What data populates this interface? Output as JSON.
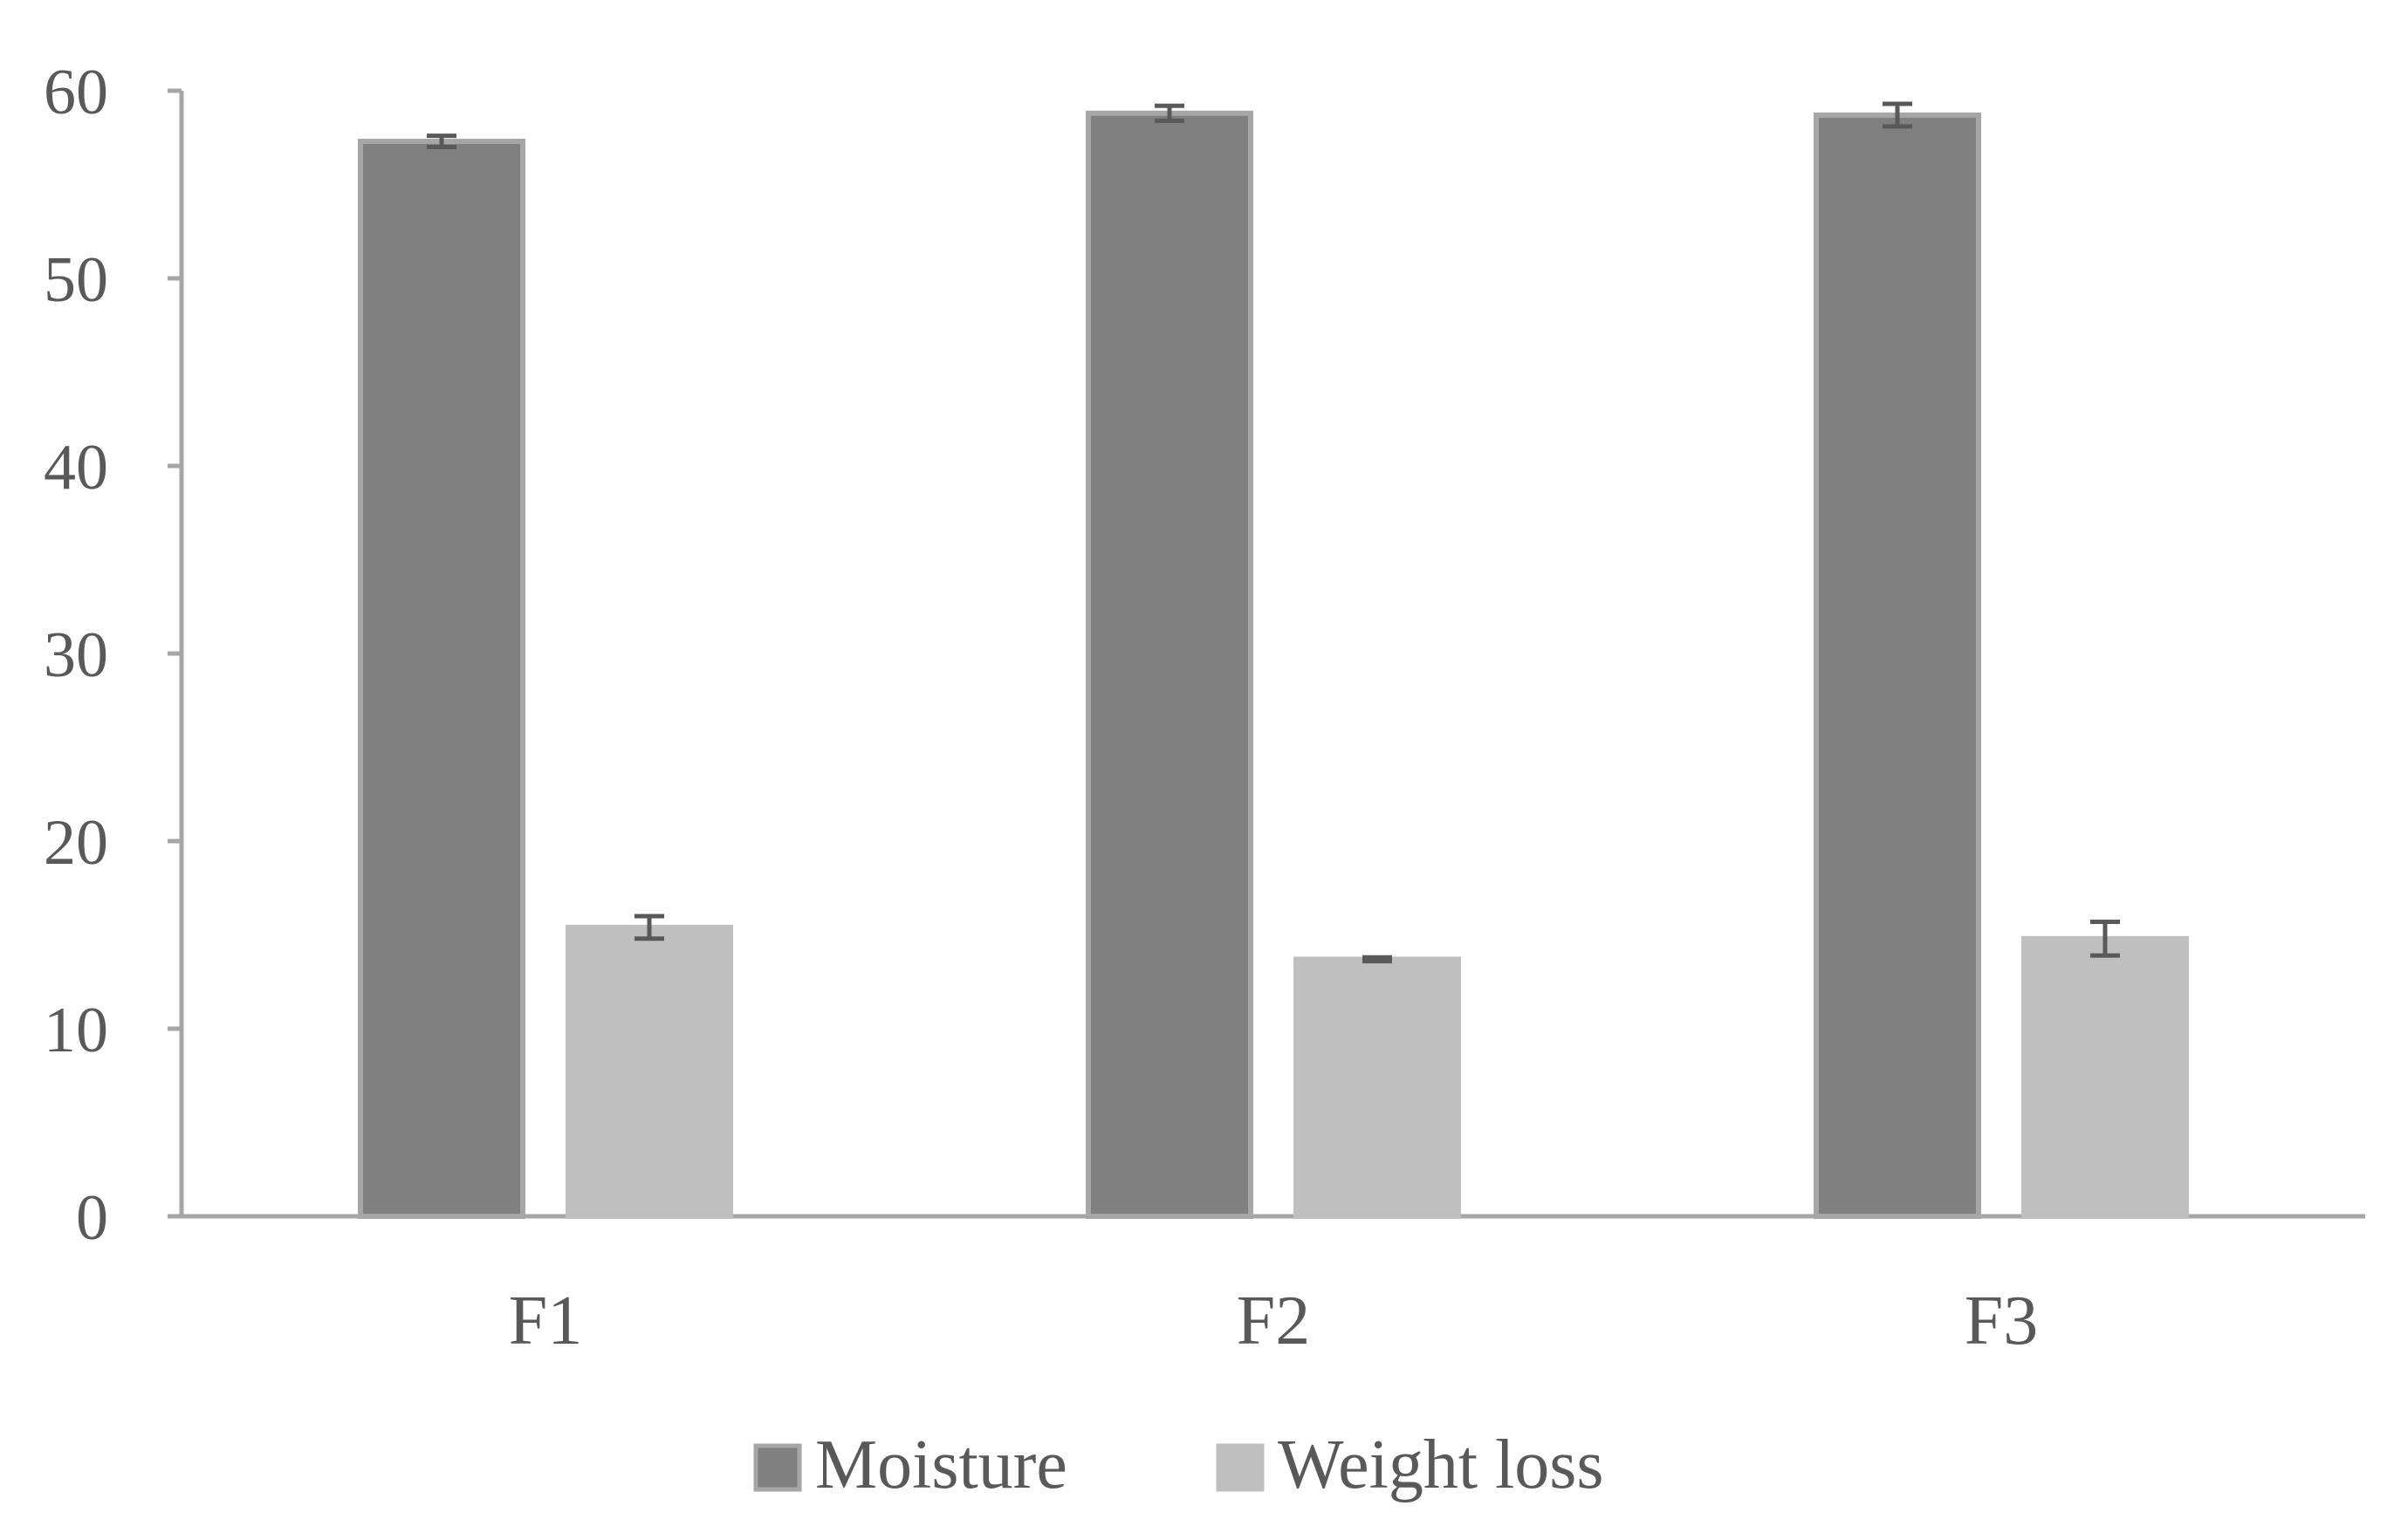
{
  "chart_data": {
    "type": "bar",
    "categories": [
      "F1",
      "F2",
      "F3"
    ],
    "series": [
      {
        "name": "Moisture",
        "values": [
          57.3,
          58.8,
          58.7
        ],
        "errors": [
          0.3,
          0.4,
          0.6
        ],
        "color": "#808080",
        "border_color": "#a6a6a6"
      },
      {
        "name": "Weight loss",
        "values": [
          15.4,
          13.7,
          14.8
        ],
        "errors": [
          0.6,
          0.1,
          0.9
        ],
        "color": "#bfbfbf",
        "border_color": "#bfbfbf"
      }
    ],
    "title": "",
    "xlabel": "",
    "ylabel": "",
    "ylim": [
      0,
      60
    ],
    "yticks": [
      "0",
      "10",
      "20",
      "30",
      "40",
      "50",
      "60"
    ],
    "grid": false,
    "legend": "bottom-center",
    "axis_color": "#a6a6a6",
    "axis_text_color": "#595959",
    "error_bar_color": "#595959"
  }
}
